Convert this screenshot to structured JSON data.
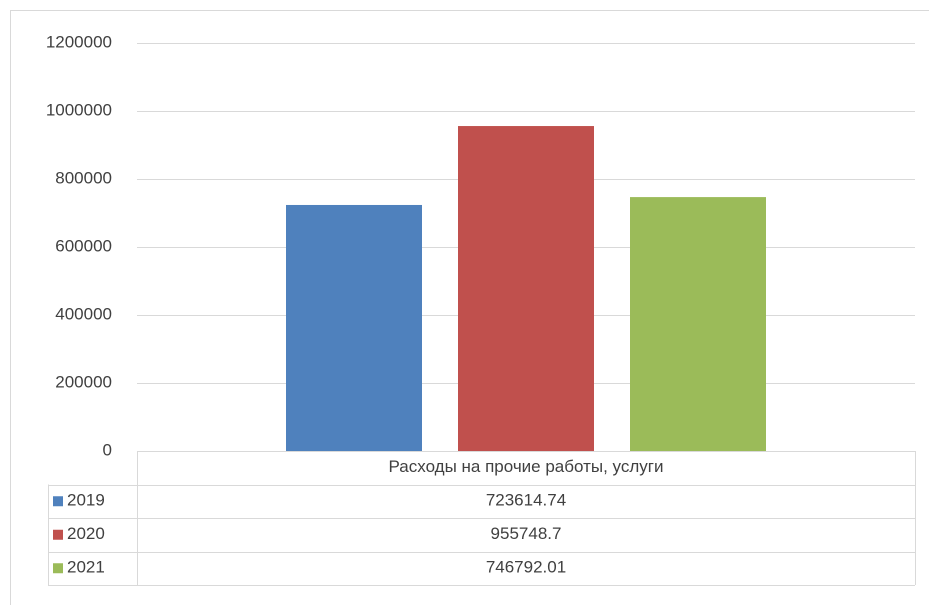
{
  "chart_data": {
    "type": "bar",
    "categories": [
      "Расходы на прочие работы, услуги"
    ],
    "series": [
      {
        "name": "2019",
        "color": "#4f81bd",
        "values": [
          723614.74
        ]
      },
      {
        "name": "2020",
        "color": "#c0504d",
        "values": [
          955748.7
        ]
      },
      {
        "name": "2021",
        "color": "#9bbb59",
        "values": [
          746792.01
        ]
      }
    ],
    "ylim": [
      0,
      1200000
    ],
    "yticks": [
      0,
      200000,
      400000,
      600000,
      800000,
      1000000,
      1200000
    ],
    "grid": true,
    "data_table": true
  }
}
